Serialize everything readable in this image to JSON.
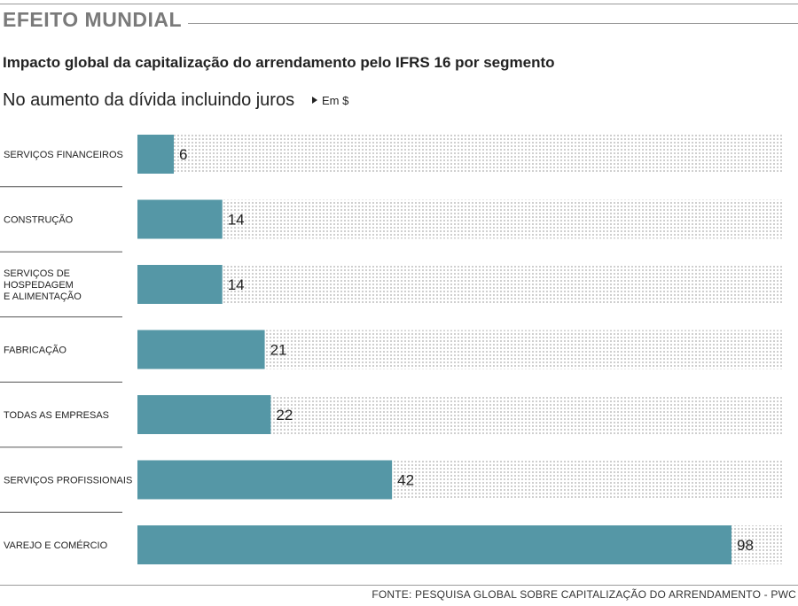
{
  "header": {
    "kicker": "EFEITO MUNDIAL",
    "headline": "Impacto global da capitalização do arrendamento pelo IFRS 16 por segmento",
    "subtitle": "No aumento da dívida incluindo juros",
    "unit": "Em $"
  },
  "footer": {
    "source": "FONTE: PESQUISA GLOBAL SOBRE CAPITALIZAÇÃO DO ARRENDAMENTO - PWC"
  },
  "colors": {
    "bar": "#5597a6",
    "track_dot": "#cfcfcf",
    "divider": "#555555"
  },
  "chart_data": {
    "type": "bar",
    "orientation": "horizontal",
    "title": "Impacto global da capitalização do arrendamento pelo IFRS 16 por segmento",
    "subtitle": "No aumento da dívida incluindo juros",
    "unit": "Em $",
    "xlim": [
      0,
      107
    ],
    "grid": false,
    "categories": [
      [
        "SERVIÇOS FINANCEIROS"
      ],
      [
        "CONSTRUÇÃO"
      ],
      [
        "SERVIÇOS DE",
        "HOSPEDAGEM",
        "E ALIMENTAÇÃO"
      ],
      [
        "FABRICAÇÃO"
      ],
      [
        "TODAS AS EMPRESAS"
      ],
      [
        "SERVIÇOS PROFISSIONAIS"
      ],
      [
        "VAREJO E COMÉRCIO"
      ]
    ],
    "values": [
      6,
      14,
      14,
      21,
      22,
      42,
      98
    ]
  }
}
